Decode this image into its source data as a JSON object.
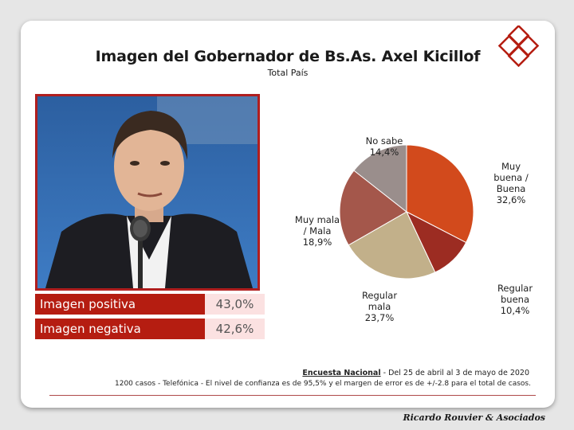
{
  "header": {
    "title": "Imagen del Gobernador de Bs.As. Axel Kicillof",
    "subtitle": "Total País"
  },
  "summary": [
    {
      "label": "Imagen positiva",
      "value": "43,0%"
    },
    {
      "label": "Imagen negativa",
      "value": "42,6%"
    }
  ],
  "chart_data": {
    "type": "pie",
    "title": "",
    "slices": [
      {
        "label": [
          "Muy",
          "buena /",
          "Buena"
        ],
        "value": 32.6,
        "text": "32,6%",
        "color": "#d24a1c"
      },
      {
        "label": [
          "Regular",
          "buena"
        ],
        "value": 10.4,
        "text": "10,4%",
        "color": "#9c2c22"
      },
      {
        "label": [
          "Regular",
          "mala"
        ],
        "value": 23.7,
        "text": "23,7%",
        "color": "#c2b08a"
      },
      {
        "label": [
          "Muy mala",
          "/ Mala"
        ],
        "value": 18.9,
        "text": "18,9%",
        "color": "#a4574b"
      },
      {
        "label": [
          "No sabe"
        ],
        "value": 14.4,
        "text": "14,4%",
        "color": "#9a8e8c"
      }
    ]
  },
  "footer": {
    "survey_name": "Encuesta Nacional",
    "survey_dates": " - Del 25 de abril  al 3 de mayo de 2020",
    "methodology": "1200 casos - Telefónica   - El nivel  de confianza  es de 95,5% y el margen de error es de +/-2.8 para el  total  de casos."
  },
  "signature": "Ricardo Rouvier & Asociados",
  "colors": {
    "accent": "#b51d11",
    "value_bg": "#fbe1e1"
  }
}
